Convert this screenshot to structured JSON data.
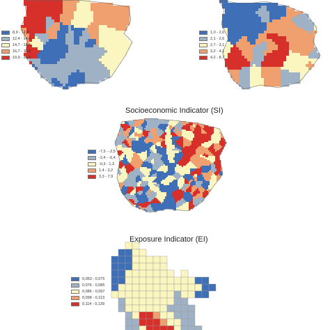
{
  "colors": {
    "c1": "#3f6fb6",
    "c2": "#9fb1c4",
    "c3": "#fbf6c0",
    "c4": "#f0a06e",
    "c5": "#d7302a",
    "border": "#666666"
  },
  "maps": [
    {
      "id": "top-left",
      "title": "",
      "legend": [
        "8,9 - 12,3",
        "12,4 - 14,6",
        "14,7 - 16,6",
        "16,7 - 19,8",
        "19,9 - 25,1"
      ]
    },
    {
      "id": "top-right",
      "title": "",
      "legend": [
        "1,0 - 2,0",
        "2,1 - 2,6",
        "2,7 - 3,1",
        "3,2 - 4,1",
        "4,2 - 8,7"
      ]
    },
    {
      "id": "socioeconomic",
      "title": "Socioeconomic Indicator (SI)",
      "legend": [
        "-7,3 - -2,5",
        "-2,4 - -0,4",
        "-0,3 - 1,3",
        "1,4 - 3,2",
        "3,3 - 7,9"
      ]
    },
    {
      "id": "exposure",
      "title": "Exposure Indicator (EI)",
      "legend": [
        "0,063 - 0,075",
        "0,076 - 0,085",
        "0,086 - 0,097",
        "0,098 - 0,113",
        "0,114 - 0,139"
      ]
    }
  ]
}
